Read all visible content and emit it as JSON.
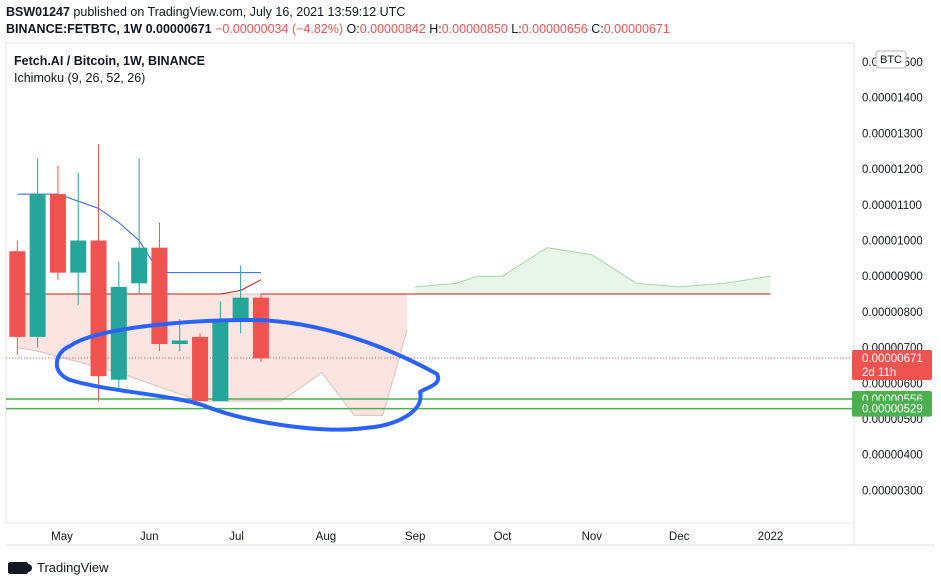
{
  "header": {
    "user": "BSW01247",
    "published": "published on TradingView.com, July 16, 2021 13:59:12 UTC",
    "symbol_line": "BINANCE:FETBTC, 1W",
    "last": "0.00000671",
    "change": "−0.00000034 (−4.82%)",
    "o_label": "O:",
    "o": "0.00000842",
    "h_label": "H:",
    "h": "0.00000850",
    "l_label": "L:",
    "l": "0.00000656",
    "c_label": "C:",
    "c": "0.00000671"
  },
  "legend": {
    "title": "Fetch.AI / Bitcoin, 1W, BINANCE",
    "indicator": "Ichimoku (9, 26, 52, 26)"
  },
  "currency_badge": "BTC",
  "price_tags": {
    "last": "0.00000671",
    "countdown": "2d 11h",
    "level1": "0.00000556",
    "level2": "0.00000529"
  },
  "footer": {
    "brand": "TradingView"
  },
  "colors": {
    "up": "#26a69a",
    "down": "#ef5350",
    "annotation": "#2962ff",
    "level_line": "#4caf50",
    "baseline": "#b71c1c",
    "conversion": "#2962ff",
    "bear_cloud": "#fce4e1",
    "bull_cloud": "#e8f5e9"
  },
  "chart_data": {
    "type": "candlestick",
    "title": "Fetch.AI / Bitcoin, 1W, BINANCE",
    "ylim": [
      2.5e-06,
      1.57e-05
    ],
    "y_ticks": [
      "0.00000300",
      "0.00000400",
      "0.00000500",
      "0.00000600",
      "0.00000700",
      "0.00000800",
      "0.00000900",
      "0.00001000",
      "0.00001100",
      "0.00001200",
      "0.00001300",
      "0.00001400",
      "0.00001500"
    ],
    "x_ticks": [
      {
        "label": "May",
        "week": 0
      },
      {
        "label": "Jun",
        "week": 4.3
      },
      {
        "label": "Jul",
        "week": 8.6
      },
      {
        "label": "Aug",
        "week": 13
      },
      {
        "label": "Sep",
        "week": 17.4
      },
      {
        "label": "Oct",
        "week": 21.7
      },
      {
        "label": "Nov",
        "week": 26.1
      },
      {
        "label": "Dec",
        "week": 30.4
      },
      {
        "label": "2022",
        "week": 34.9
      }
    ],
    "candles": [
      {
        "week": -2.2,
        "o": 9.7e-06,
        "h": 1e-05,
        "l": 6.8e-06,
        "c": 7.3e-06
      },
      {
        "week": -1.2,
        "o": 7.3e-06,
        "h": 1.23e-05,
        "l": 7e-06,
        "c": 1.13e-05
      },
      {
        "week": -0.2,
        "o": 1.13e-05,
        "h": 1.21e-05,
        "l": 8.9e-06,
        "c": 9.1e-06
      },
      {
        "week": 0.8,
        "o": 9.1e-06,
        "h": 1.19e-05,
        "l": 8.2e-06,
        "c": 1e-05
      },
      {
        "week": 1.8,
        "o": 1e-05,
        "h": 1.27e-05,
        "l": 5.5e-06,
        "c": 6.2e-06
      },
      {
        "week": 2.8,
        "o": 6.1e-06,
        "h": 9.4e-06,
        "l": 5.8e-06,
        "c": 8.7e-06
      },
      {
        "week": 3.8,
        "o": 8.8e-06,
        "h": 1.23e-05,
        "l": 8.5e-06,
        "c": 9.8e-06
      },
      {
        "week": 4.8,
        "o": 9.8e-06,
        "h": 1.05e-05,
        "l": 6.9e-06,
        "c": 7.1e-06
      },
      {
        "week": 5.8,
        "o": 7.1e-06,
        "h": 7.8e-06,
        "l": 6.9e-06,
        "c": 7.2e-06
      },
      {
        "week": 6.8,
        "o": 7.3e-06,
        "h": 7.4e-06,
        "l": 5.5e-06,
        "c": 5.5e-06
      },
      {
        "week": 7.8,
        "o": 5.5e-06,
        "h": 8.3e-06,
        "l": 5.5e-06,
        "c": 7.8e-06
      },
      {
        "week": 8.8,
        "o": 7.8e-06,
        "h": 9.3e-06,
        "l": 7.4e-06,
        "c": 8.4e-06
      },
      {
        "week": 9.8,
        "o": 8.4e-06,
        "h": 8.5e-06,
        "l": 6.6e-06,
        "c": 6.7e-06
      }
    ],
    "series": [
      {
        "name": "Conversion Line",
        "week": [
          -2.2,
          -1.2,
          -0.2,
          0.8,
          1.8,
          2.8,
          3.8,
          4.8,
          5.8,
          6.8,
          7.8,
          8.8,
          9.8
        ],
        "values": [
          1.13e-05,
          1.13e-05,
          1.13e-05,
          1.11e-05,
          1.09e-05,
          1.05e-05,
          1e-05,
          9.1e-06,
          9.1e-06,
          9.1e-06,
          9.1e-06,
          9.1e-06,
          9.1e-06
        ]
      },
      {
        "name": "Base Line",
        "week": [
          -2.2,
          -1.2,
          -0.2,
          0.8,
          1.8,
          2.8,
          3.8,
          4.8,
          5.8,
          6.8,
          7.8,
          8.8,
          9.8
        ],
        "values": [
          8.5e-06,
          8.5e-06,
          8.5e-06,
          8.5e-06,
          8.5e-06,
          8.5e-06,
          8.5e-06,
          8.5e-06,
          8.5e-06,
          8.5e-06,
          8.5e-06,
          8.6e-06,
          8.9e-06
        ]
      },
      {
        "name": "Base Line Extension",
        "week": [
          9.8,
          34.9
        ],
        "values": [
          8.5e-06,
          8.5e-06
        ]
      }
    ],
    "cloud_bear": {
      "week": [
        -2.2,
        -1.2,
        0.8,
        2.8,
        4.8,
        6.8,
        8.8,
        10.8,
        12.8,
        14.4,
        15.8,
        17.0
      ],
      "span_a": [
        8.5e-06,
        8.5e-06,
        8.5e-06,
        8.5e-06,
        8.5e-06,
        8.5e-06,
        8.5e-06,
        8.5e-06,
        8.5e-06,
        8.5e-06,
        8.5e-06,
        8.5e-06
      ],
      "span_b": [
        7e-06,
        6.9e-06,
        6.6e-06,
        6.3e-06,
        5.9e-06,
        5.5e-06,
        5.5e-06,
        5.5e-06,
        6.3e-06,
        5.1e-06,
        5.1e-06,
        7.5e-06
      ]
    },
    "cloud_bull": {
      "week": [
        17.4,
        19.4,
        20.5,
        21.7,
        23.9,
        26.1,
        28.3,
        30.4,
        32.6,
        34.9
      ],
      "span_a": [
        8.7e-06,
        8.8e-06,
        9e-06,
        9e-06,
        9.8e-06,
        9.6e-06,
        8.8e-06,
        8.7e-06,
        8.8e-06,
        9e-06
      ],
      "span_b": [
        8.5e-06,
        8.5e-06,
        8.5e-06,
        8.5e-06,
        8.5e-06,
        8.5e-06,
        8.5e-06,
        8.5e-06,
        8.5e-06,
        8.5e-06
      ]
    },
    "levels": [
      5.56e-06,
      5.29e-06
    ],
    "last_price": 6.71e-06
  }
}
